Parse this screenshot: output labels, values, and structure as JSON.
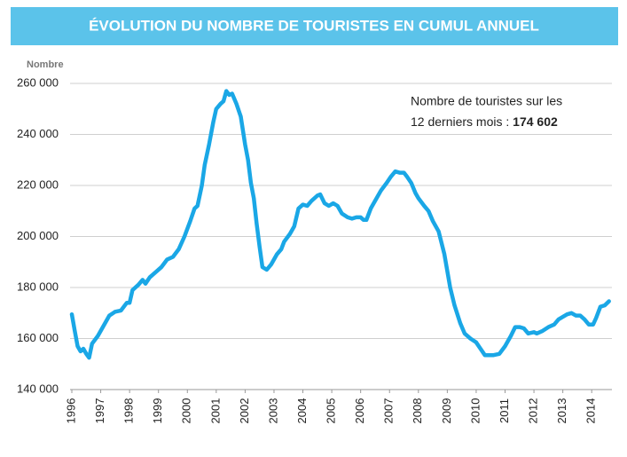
{
  "chart_data": {
    "type": "line",
    "title": "ÉVOLUTION DU NOMBRE DE TOURISTES EN CUMUL ANNUEL",
    "y_label": "Nombre",
    "annotation": [
      "Nombre de touristes sur les",
      "12 derniers mois :"
    ],
    "annotation_value": "174 602",
    "x": [
      1996.0,
      1996.1,
      1996.2,
      1996.3,
      1996.4,
      1996.5,
      1996.6,
      1996.7,
      1996.9,
      1997.1,
      1997.3,
      1997.5,
      1997.7,
      1997.9,
      1998.0,
      1998.1,
      1998.3,
      1998.45,
      1998.55,
      1998.7,
      1998.9,
      1999.1,
      1999.3,
      1999.5,
      1999.7,
      1999.9,
      2000.1,
      2000.25,
      2000.35,
      2000.5,
      2000.6,
      2000.75,
      2000.9,
      2001.0,
      2001.15,
      2001.25,
      2001.35,
      2001.45,
      2001.55,
      2001.7,
      2001.85,
      2002.0,
      2002.1,
      2002.2,
      2002.3,
      2002.4,
      2002.5,
      2002.6,
      2002.75,
      2002.9,
      2003.1,
      2003.25,
      2003.35,
      2003.55,
      2003.7,
      2003.85,
      2004.0,
      2004.15,
      2004.3,
      2004.5,
      2004.6,
      2004.75,
      2004.9,
      2005.05,
      2005.2,
      2005.35,
      2005.55,
      2005.7,
      2005.85,
      2006.0,
      2006.1,
      2006.2,
      2006.35,
      2006.5,
      2006.7,
      2006.9,
      2007.05,
      2007.2,
      2007.35,
      2007.5,
      2007.6,
      2007.75,
      2007.9,
      2008.0,
      2008.2,
      2008.35,
      2008.5,
      2008.7,
      2008.9,
      2009.1,
      2009.25,
      2009.45,
      2009.6,
      2009.8,
      2010.0,
      2010.15,
      2010.3,
      2010.45,
      2010.6,
      2010.8,
      2011.0,
      2011.2,
      2011.35,
      2011.5,
      2011.65,
      2011.8,
      2012.0,
      2012.1,
      2012.3,
      2012.5,
      2012.7,
      2012.85,
      2013.0,
      2013.15,
      2013.3,
      2013.45,
      2013.6,
      2013.75,
      2013.9,
      2014.05,
      2014.15,
      2014.3,
      2014.45,
      2014.6
    ],
    "series": [
      {
        "color": "#1aa7e6",
        "values": [
          169500,
          163000,
          157000,
          155000,
          156000,
          154000,
          152500,
          158000,
          161000,
          165000,
          169000,
          170500,
          171000,
          174000,
          174000,
          179000,
          181000,
          183000,
          181500,
          184000,
          186000,
          188000,
          191000,
          192000,
          195000,
          200000,
          206000,
          211000,
          212000,
          220000,
          228000,
          236000,
          245000,
          250000,
          252000,
          253000,
          257000,
          255500,
          256000,
          252000,
          247000,
          236000,
          230000,
          221000,
          215000,
          205000,
          196000,
          188000,
          187000,
          189000,
          193000,
          195000,
          198000,
          201000,
          204000,
          211000,
          212500,
          212000,
          214000,
          216000,
          216500,
          213000,
          212000,
          213000,
          212000,
          209000,
          207500,
          207000,
          207500,
          207500,
          206500,
          206500,
          211000,
          214000,
          218000,
          221000,
          223500,
          225500,
          225000,
          225000,
          223500,
          221000,
          217000,
          215000,
          212000,
          210000,
          206000,
          202000,
          193000,
          180000,
          173000,
          166000,
          162000,
          160000,
          158500,
          156000,
          153500,
          153500,
          153500,
          154000,
          157000,
          161000,
          164500,
          164500,
          164000,
          162000,
          162500,
          162000,
          163000,
          164500,
          165500,
          167500,
          168500,
          169500,
          170000,
          169000,
          169000,
          167500,
          165500,
          165500,
          168000,
          172500,
          173000,
          174600
        ]
      }
    ],
    "xlim": [
      1996,
      2014.7
    ],
    "xticks": [
      1996,
      1997,
      1998,
      1999,
      2000,
      2001,
      2002,
      2003,
      2004,
      2005,
      2006,
      2007,
      2008,
      2009,
      2010,
      2011,
      2012,
      2013,
      2014
    ],
    "ylim": [
      140000,
      260000
    ],
    "yticks": [
      {
        "value": 140000,
        "label": "140 000"
      },
      {
        "value": 160000,
        "label": "160 000"
      },
      {
        "value": 180000,
        "label": "180 000"
      },
      {
        "value": 200000,
        "label": "200 000"
      },
      {
        "value": 220000,
        "label": "220 000"
      },
      {
        "value": 240000,
        "label": "240 000"
      },
      {
        "value": 260000,
        "label": "260 000"
      }
    ],
    "grid": true,
    "title_background": "#5bc3ea"
  }
}
